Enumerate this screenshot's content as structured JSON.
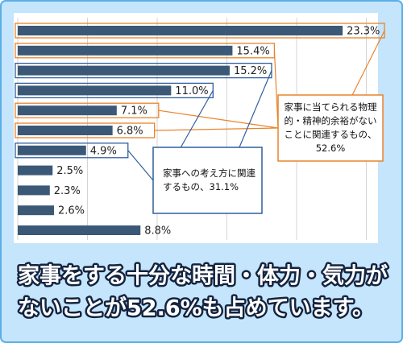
{
  "chart_data": {
    "type": "bar",
    "orientation": "horizontal",
    "categories": [
      null,
      null,
      null,
      null,
      null,
      null,
      null,
      null,
      null,
      null,
      null
    ],
    "values": [
      23.3,
      15.4,
      15.2,
      11.0,
      7.1,
      6.8,
      4.9,
      2.5,
      2.3,
      2.6,
      8.8
    ],
    "value_labels": [
      "23.3%",
      "15.4%",
      "15.2%",
      "11.0%",
      "7.1%",
      "6.8%",
      "4.9%",
      "2.5%",
      "2.3%",
      "2.6%",
      "8.8%"
    ],
    "color": "#3b5877",
    "xlim": [
      0,
      25
    ],
    "xticks": [
      0,
      5,
      10,
      15,
      20,
      25
    ],
    "grid": true,
    "annotations": [
      {
        "lines": [
          "家事に当てられる物理",
          "的・精神的余裕がない",
          "ことに関連するもの、",
          "52.6%"
        ],
        "color": "#e8842c",
        "bars": [
          0,
          1,
          4,
          5
        ]
      },
      {
        "lines": [
          "家事への考え方に関連",
          "するもの、31.1%"
        ],
        "color": "#2f5f9e",
        "bars": [
          2,
          3,
          6
        ]
      }
    ]
  },
  "caption": [
    "家事をする十分な時間・体力・気力が",
    "ないことが52.6%も占めています。"
  ]
}
